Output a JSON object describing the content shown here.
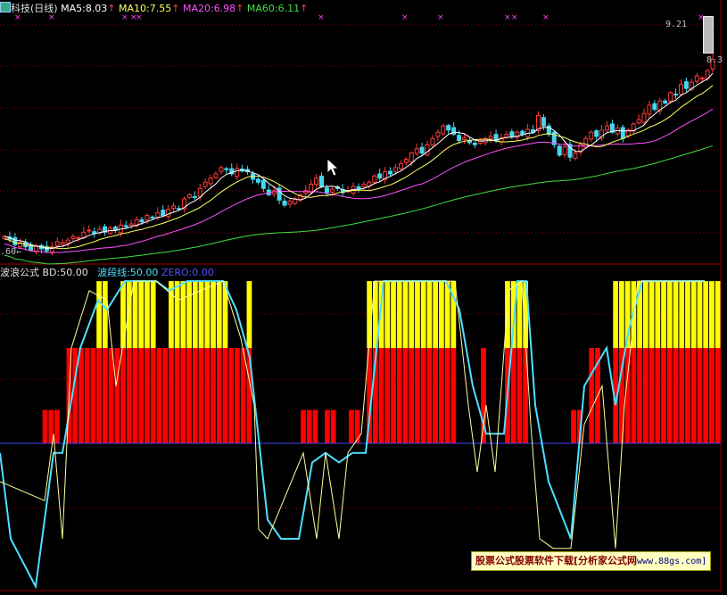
{
  "colors": {
    "bg": "#000000",
    "grid": "#8b0000",
    "up": "#ff3a3a",
    "down": "#44d8f0",
    "ma5": "#ffffff",
    "ma10": "#ffff60",
    "ma20": "#ff50ff",
    "ma60": "#40e040",
    "bd_bar_red": "#ff0000",
    "bd_bar_yellow": "#ffff00",
    "wave_line": "#4ee0ff",
    "bd_line": "#ffffa0",
    "zero_line": "#4040ff"
  },
  "price_panel": {
    "title": "科技(日线)",
    "ma5_label": "MA5:8.03",
    "ma10_label": "MA10:7.55",
    "ma20_label": "MA20:6.98",
    "ma60_label": "MA60:6.11",
    "arrow": "↑",
    "high_label": "9.21",
    "last_label": "8.3",
    "low_label": ".60",
    "low_arrow": "←"
  },
  "indicator_panel": {
    "name_label": "波浪公式",
    "bd_label": "BD:50.00",
    "wave_label": "波段线:50.00",
    "zero_label": "ZERO:0.00"
  },
  "watermark": {
    "text": "股票公式股票软件下载[分析家公式网",
    "url": "www.88gs.com]"
  },
  "chart_data": [
    {
      "type": "candlestick",
      "title": "科技(日线)",
      "y_range": [
        3.6,
        9.21
      ],
      "grid": true,
      "series": [
        {
          "name": "MA5",
          "value": 8.03
        },
        {
          "name": "MA10",
          "value": 7.55
        },
        {
          "name": "MA20",
          "value": 6.98
        },
        {
          "name": "MA60",
          "value": 6.11
        }
      ],
      "candles_close": [
        4.05,
        3.98,
        3.85,
        3.9,
        3.8,
        3.72,
        3.82,
        3.75,
        3.7,
        3.8,
        3.92,
        3.9,
        3.96,
        4.05,
        4.02,
        4.15,
        4.2,
        4.12,
        4.22,
        4.15,
        4.25,
        4.2,
        4.32,
        4.28,
        4.35,
        4.45,
        4.4,
        4.55,
        4.5,
        4.62,
        4.55,
        4.7,
        4.78,
        4.72,
        4.95,
        5.05,
        5.0,
        5.2,
        5.35,
        5.45,
        5.55,
        5.7,
        5.65,
        5.55,
        5.68,
        5.62,
        5.6,
        5.42,
        5.35,
        5.2,
        5.05,
        5.15,
        4.92,
        4.8,
        4.9,
        4.95,
        5.05,
        5.15,
        5.3,
        5.45,
        5.25,
        5.1,
        5.18,
        5.2,
        5.1,
        5.15,
        5.25,
        5.2,
        5.3,
        5.35,
        5.5,
        5.45,
        5.6,
        5.55,
        5.7,
        5.8,
        5.9,
        6.05,
        6.15,
        6.05,
        6.25,
        6.4,
        6.55,
        6.7,
        6.6,
        6.5,
        6.35,
        6.42,
        6.3,
        6.25,
        6.35,
        6.4,
        6.45,
        6.35,
        6.42,
        6.5,
        6.45,
        6.55,
        6.5,
        6.62,
        6.55,
        6.95,
        6.7,
        6.5,
        6.25,
        6.0,
        6.2,
        5.95,
        6.05,
        6.25,
        6.4,
        6.55,
        6.45,
        6.6,
        6.7,
        6.55,
        6.65,
        6.4,
        6.6,
        6.75,
        6.85,
        7.0,
        7.2,
        7.1,
        7.3,
        7.25,
        7.5,
        7.45,
        7.7,
        7.6,
        7.75,
        7.9,
        7.85,
        8.03,
        8.3
      ]
    },
    {
      "type": "bar",
      "title": "波浪公式",
      "series": [
        {
          "name": "BD",
          "value": 50.0
        },
        {
          "name": "波段线",
          "value": 50.0
        },
        {
          "name": "ZERO",
          "value": 0.0
        }
      ]
    }
  ]
}
